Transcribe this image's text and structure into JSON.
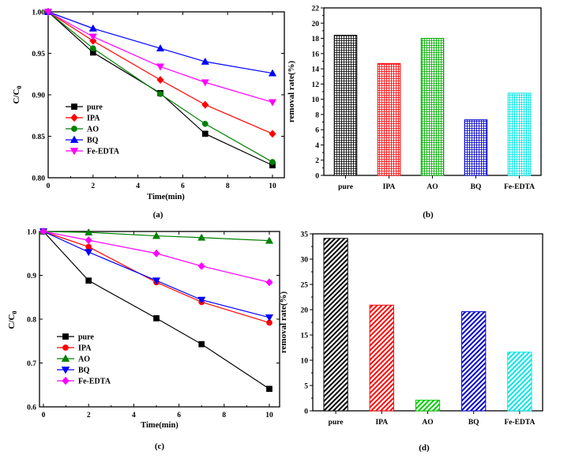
{
  "chart_data": [
    {
      "id": "a",
      "type": "line",
      "caption": "(a)",
      "ylabel": "C/C",
      "ylabel_sub": "0",
      "xlabel": "Time(min)",
      "xlim": [
        0,
        10
      ],
      "ylim": [
        0.8,
        1.0
      ],
      "x_ticks": [
        "0",
        "2",
        "4",
        "6",
        "8",
        "10"
      ],
      "y_ticks": [
        "0.80",
        "0.85",
        "0.90",
        "0.95",
        "1.00"
      ],
      "x": [
        0,
        2,
        5,
        7,
        10
      ],
      "series": [
        {
          "name": "pure",
          "marker": "square",
          "color": "#000000",
          "values": [
            1.0,
            0.951,
            0.902,
            0.853,
            0.815
          ]
        },
        {
          "name": "IPA",
          "marker": "diamond",
          "color": "#ff0000",
          "values": [
            1.0,
            0.965,
            0.918,
            0.888,
            0.853
          ]
        },
        {
          "name": "AO",
          "marker": "circle",
          "color": "#008000",
          "values": [
            1.0,
            0.956,
            0.901,
            0.865,
            0.819
          ]
        },
        {
          "name": "BQ",
          "marker": "triangle-up",
          "color": "#0000ff",
          "values": [
            1.0,
            0.98,
            0.956,
            0.94,
            0.926
          ]
        },
        {
          "name": "Fe-EDTA",
          "marker": "triangle-down",
          "color": "#ff00ff",
          "values": [
            1.0,
            0.97,
            0.934,
            0.915,
            0.891
          ]
        }
      ],
      "legend": "bottom-left"
    },
    {
      "id": "b",
      "type": "bar",
      "caption": "(b)",
      "ylabel": "removal rate(%)",
      "ylim": [
        0,
        22
      ],
      "y_ticks": [
        "0",
        "2",
        "4",
        "6",
        "8",
        "10",
        "12",
        "14",
        "16",
        "18",
        "20",
        "22"
      ],
      "categories": [
        "pure",
        "IPA",
        "AO",
        "BQ",
        "Fe-EDTA"
      ],
      "values": [
        18.4,
        14.7,
        18.0,
        7.3,
        10.8
      ],
      "colors": [
        "#000000",
        "#ff0000",
        "#00aa00",
        "#0000cc",
        "#00e5e5"
      ],
      "pattern": "grid"
    },
    {
      "id": "c",
      "type": "line",
      "caption": "(c)",
      "ylabel": "C/C",
      "ylabel_sub": "0",
      "xlabel": "Time(min)",
      "xlim": [
        0,
        10
      ],
      "ylim": [
        0.6,
        1.0
      ],
      "x_ticks": [
        "0",
        "2",
        "4",
        "6",
        "8",
        "10"
      ],
      "y_ticks": [
        "0.6",
        "0.7",
        "0.8",
        "0.9",
        "1.0"
      ],
      "x": [
        0,
        2,
        5,
        7,
        10
      ],
      "series": [
        {
          "name": "pure",
          "marker": "square",
          "color": "#000000",
          "values": [
            1.0,
            0.888,
            0.802,
            0.743,
            0.641
          ]
        },
        {
          "name": "IPA",
          "marker": "circle",
          "color": "#ff0000",
          "values": [
            1.0,
            0.965,
            0.884,
            0.839,
            0.792
          ]
        },
        {
          "name": "AO",
          "marker": "triangle-up",
          "color": "#008000",
          "values": [
            1.0,
            0.998,
            0.99,
            0.986,
            0.979
          ]
        },
        {
          "name": "BQ",
          "marker": "triangle-down",
          "color": "#0000ff",
          "values": [
            1.0,
            0.953,
            0.888,
            0.844,
            0.804
          ]
        },
        {
          "name": "Fe-EDTA",
          "marker": "diamond",
          "color": "#ff00ff",
          "values": [
            1.0,
            0.98,
            0.95,
            0.921,
            0.884
          ]
        }
      ],
      "legend": "bottom-left"
    },
    {
      "id": "d",
      "type": "bar",
      "caption": "(d)",
      "ylabel": "removal rate(%)",
      "ylim": [
        0,
        35
      ],
      "y_ticks": [
        "0",
        "5",
        "10",
        "15",
        "20",
        "25",
        "30",
        "35"
      ],
      "categories": [
        "pure",
        "IPA",
        "AO",
        "BQ",
        "Fe-EDTA"
      ],
      "values": [
        34.1,
        20.9,
        2.1,
        19.6,
        11.6
      ],
      "colors": [
        "#000000",
        "#ff0000",
        "#00cc00",
        "#0000cc",
        "#00e5e5"
      ],
      "pattern": "diagonal"
    }
  ]
}
